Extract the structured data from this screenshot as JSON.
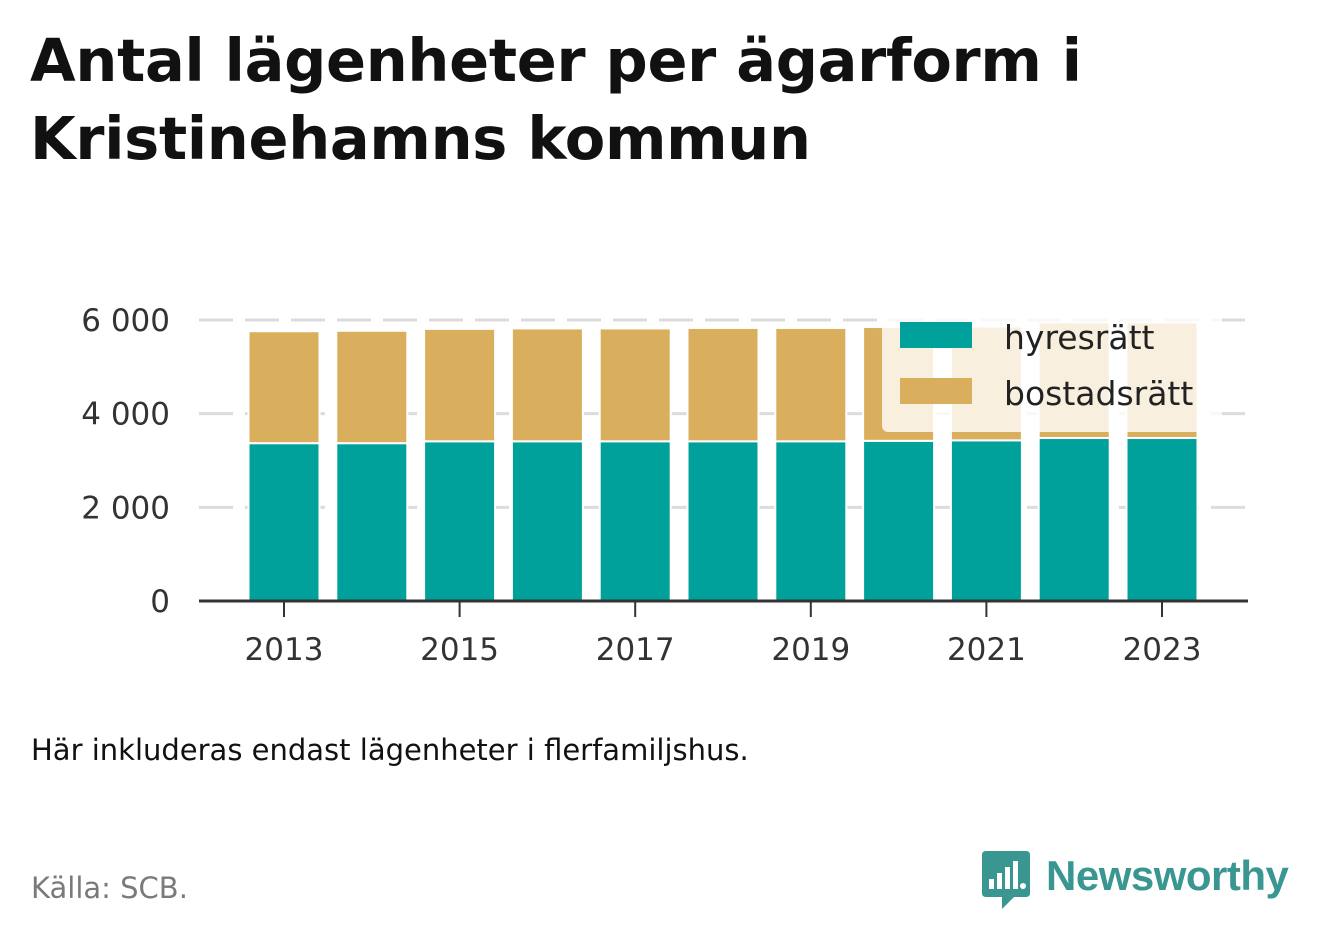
{
  "title": "Antal lägenheter per ägarform i Kristinehamns kommun",
  "note": "Här inkluderas endast lägenheter i flerfamiljshus.",
  "source": "Källa: SCB.",
  "brand": {
    "name": "Newsworthy",
    "icon": "newsworthy-logo-icon",
    "color": "#3a9690"
  },
  "chart_data": {
    "type": "bar",
    "stacked": true,
    "x": [
      2013,
      2014,
      2015,
      2016,
      2017,
      2018,
      2019,
      2020,
      2021,
      2022,
      2023
    ],
    "series": [
      {
        "name": "hyresrätt",
        "color": "#00a19a",
        "values": [
          3370,
          3370,
          3410,
          3410,
          3410,
          3410,
          3410,
          3420,
          3430,
          3480,
          3480
        ]
      },
      {
        "name": "bostadsrätt",
        "color": "#d9ae5c",
        "values": [
          2390,
          2400,
          2400,
          2410,
          2410,
          2420,
          2420,
          2430,
          2430,
          2470,
          2470
        ]
      }
    ],
    "x_tick_labels": [
      "2013",
      "2015",
      "2017",
      "2019",
      "2021",
      "2023"
    ],
    "y_ticks": [
      0,
      2000,
      4000,
      6000
    ],
    "y_tick_labels": [
      "0",
      "2 000",
      "4 000",
      "6 000"
    ],
    "ylim": [
      0,
      6000
    ],
    "xlabel": "",
    "ylabel": "",
    "grid": true,
    "legend_position": "top-right"
  }
}
